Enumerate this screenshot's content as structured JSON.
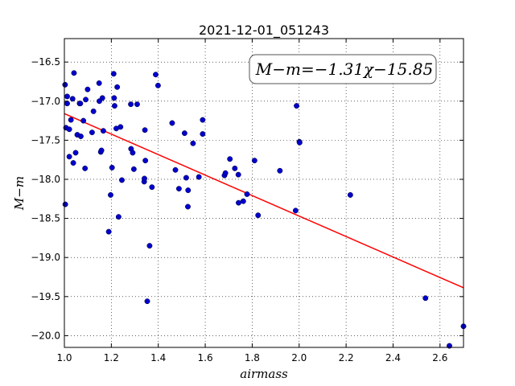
{
  "chart_data": {
    "type": "scatter",
    "title": "2021-12-01_051243",
    "xlabel": "airmass",
    "ylabel": "M−m",
    "xlim": [
      1.0,
      2.7
    ],
    "ylim": [
      -20.15,
      -16.2
    ],
    "x_ticks": [
      1.0,
      1.2,
      1.4,
      1.6,
      1.8,
      2.0,
      2.2,
      2.4,
      2.6
    ],
    "x_tick_labels": [
      "1.0",
      "1.2",
      "1.4",
      "1.6",
      "1.8",
      "2.0",
      "2.2",
      "2.4",
      "2.6"
    ],
    "y_ticks": [
      -16.5,
      -17.0,
      -17.5,
      -18.0,
      -18.5,
      -19.0,
      -19.5,
      -20.0
    ],
    "y_tick_labels": [
      "−16.5",
      "−17.0",
      "−17.5",
      "−18.0",
      "−18.5",
      "−19.0",
      "−19.5",
      "−20.0"
    ],
    "grid": true,
    "annotation": "M−m=−1.31χ−15.85",
    "fit_line": {
      "slope": -1.31,
      "intercept": -15.85,
      "color": "#ff0000"
    },
    "point_color": "#0000cc",
    "points": [
      [
        1.003,
        -16.79
      ],
      [
        1.004,
        -18.32
      ],
      [
        1.007,
        -17.34
      ],
      [
        1.012,
        -16.94
      ],
      [
        1.012,
        -17.03
      ],
      [
        1.021,
        -17.36
      ],
      [
        1.021,
        -17.71
      ],
      [
        1.028,
        -17.24
      ],
      [
        1.035,
        -16.97
      ],
      [
        1.038,
        -17.79
      ],
      [
        1.041,
        -16.64
      ],
      [
        1.048,
        -17.66
      ],
      [
        1.055,
        -17.43
      ],
      [
        1.065,
        -17.03
      ],
      [
        1.068,
        -17.03
      ],
      [
        1.07,
        -17.45
      ],
      [
        1.081,
        -17.25
      ],
      [
        1.088,
        -17.86
      ],
      [
        1.091,
        -16.98
      ],
      [
        1.099,
        -16.85
      ],
      [
        1.118,
        -17.4
      ],
      [
        1.124,
        -17.13
      ],
      [
        1.148,
        -16.77
      ],
      [
        1.149,
        -17.0
      ],
      [
        1.155,
        -17.65
      ],
      [
        1.158,
        -17.63
      ],
      [
        1.162,
        -16.96
      ],
      [
        1.166,
        -17.38
      ],
      [
        1.189,
        -18.67
      ],
      [
        1.197,
        -18.2
      ],
      [
        1.203,
        -17.85
      ],
      [
        1.21,
        -16.65
      ],
      [
        1.212,
        -16.96
      ],
      [
        1.214,
        -17.06
      ],
      [
        1.221,
        -17.35
      ],
      [
        1.225,
        -16.82
      ],
      [
        1.231,
        -18.48
      ],
      [
        1.239,
        -17.33
      ],
      [
        1.245,
        -18.01
      ],
      [
        1.283,
        -17.04
      ],
      [
        1.284,
        -17.61
      ],
      [
        1.291,
        -17.66
      ],
      [
        1.296,
        -17.87
      ],
      [
        1.31,
        -17.04
      ],
      [
        1.34,
        -18.03
      ],
      [
        1.341,
        -17.99
      ],
      [
        1.343,
        -17.37
      ],
      [
        1.345,
        -17.76
      ],
      [
        1.353,
        -19.56
      ],
      [
        1.363,
        -18.85
      ],
      [
        1.373,
        -18.1
      ],
      [
        1.389,
        -16.66
      ],
      [
        1.399,
        -16.8
      ],
      [
        1.459,
        -17.28
      ],
      [
        1.473,
        -17.88
      ],
      [
        1.488,
        -18.12
      ],
      [
        1.512,
        -17.41
      ],
      [
        1.519,
        -17.98
      ],
      [
        1.526,
        -18.35
      ],
      [
        1.527,
        -18.14
      ],
      [
        1.548,
        -17.54
      ],
      [
        1.573,
        -17.97
      ],
      [
        1.589,
        -17.24
      ],
      [
        1.589,
        -17.42
      ],
      [
        1.682,
        -17.95
      ],
      [
        1.686,
        -17.92
      ],
      [
        1.705,
        -17.74
      ],
      [
        1.726,
        -17.86
      ],
      [
        1.741,
        -17.94
      ],
      [
        1.742,
        -18.3
      ],
      [
        1.762,
        -18.28
      ],
      [
        1.778,
        -18.19
      ],
      [
        1.81,
        -17.76
      ],
      [
        1.825,
        -18.46
      ],
      [
        1.918,
        -17.89
      ],
      [
        1.985,
        -18.4
      ],
      [
        1.989,
        -17.06
      ],
      [
        2.001,
        -17.52
      ],
      [
        2.002,
        -17.53
      ],
      [
        2.218,
        -18.2
      ],
      [
        2.538,
        -19.52
      ],
      [
        2.64,
        -20.13
      ],
      [
        2.7,
        -19.88
      ]
    ]
  }
}
